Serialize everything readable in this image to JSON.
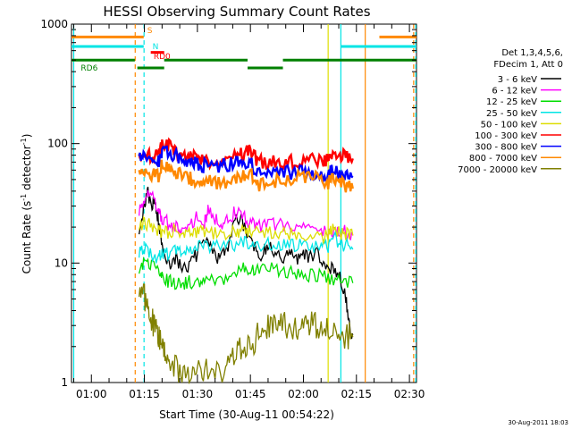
{
  "chart_data": {
    "type": "line",
    "title": "HESSI Observing Summary Count Rates",
    "xlabel": "Start Time (30-Aug-11 00:54:22)",
    "ylabel_main": "Count Rate (s",
    "ylabel_sup1": "-1",
    "ylabel_mid": " detector",
    "ylabel_sup2": "-1",
    "ylabel_end": ")",
    "y_scale": "log",
    "ylim": [
      1,
      1000
    ],
    "xlim_minutes": [
      54.37,
      152.0
    ],
    "x_ticks": [
      {
        "label": "01:00",
        "t": 60
      },
      {
        "label": "01:15",
        "t": 75
      },
      {
        "label": "01:30",
        "t": 90
      },
      {
        "label": "01:45",
        "t": 105
      },
      {
        "label": "02:00",
        "t": 120
      },
      {
        "label": "02:15",
        "t": 135
      },
      {
        "label": "02:30",
        "t": 150
      }
    ],
    "y_ticks": [
      {
        "label": "1",
        "v": 1
      },
      {
        "label": "10",
        "v": 10
      },
      {
        "label": "100",
        "v": 100
      },
      {
        "label": "1000",
        "v": 1000
      }
    ],
    "legend_title": [
      "Det 1,3,4,5,6,",
      "FDecim 1, Att 0"
    ],
    "legend_placement": "right",
    "series": [
      {
        "name": "3 - 6 keV",
        "color": "#000000",
        "points": [
          [
            73.5,
            20
          ],
          [
            75,
            30
          ],
          [
            76,
            38
          ],
          [
            77,
            30
          ],
          [
            78,
            34
          ],
          [
            79,
            22
          ],
          [
            80,
            14
          ],
          [
            82,
            10
          ],
          [
            84,
            11
          ],
          [
            86,
            9
          ],
          [
            88,
            10
          ],
          [
            90,
            12
          ],
          [
            92,
            16
          ],
          [
            94,
            13
          ],
          [
            96,
            11
          ],
          [
            98,
            12
          ],
          [
            100,
            20
          ],
          [
            102,
            25
          ],
          [
            104,
            18
          ],
          [
            106,
            14
          ],
          [
            108,
            12
          ],
          [
            110,
            14
          ],
          [
            112,
            12
          ],
          [
            114,
            11
          ],
          [
            116,
            12
          ],
          [
            118,
            11
          ],
          [
            120,
            12
          ],
          [
            122,
            11
          ],
          [
            124,
            12
          ],
          [
            126,
            10
          ],
          [
            128,
            9
          ],
          [
            130,
            8
          ],
          [
            132,
            5
          ],
          [
            133,
            3
          ],
          [
            134,
            2.5
          ]
        ]
      },
      {
        "name": "6 - 12 keV",
        "color": "#ff00ff",
        "points": [
          [
            73.5,
            28
          ],
          [
            75,
            35
          ],
          [
            77,
            38
          ],
          [
            79,
            28
          ],
          [
            80,
            24
          ],
          [
            82,
            21
          ],
          [
            84,
            20
          ],
          [
            86,
            19
          ],
          [
            88,
            21
          ],
          [
            90,
            25
          ],
          [
            92,
            22
          ],
          [
            93,
            28
          ],
          [
            95,
            24
          ],
          [
            97,
            22
          ],
          [
            99,
            24
          ],
          [
            101,
            27
          ],
          [
            103,
            24
          ],
          [
            105,
            22
          ],
          [
            107,
            20
          ],
          [
            110,
            21
          ],
          [
            113,
            21
          ],
          [
            116,
            20
          ],
          [
            119,
            20
          ],
          [
            122,
            20
          ],
          [
            125,
            19
          ],
          [
            128,
            18
          ],
          [
            130,
            19
          ],
          [
            132,
            18
          ],
          [
            134,
            17
          ]
        ]
      },
      {
        "name": "12 - 25 keV",
        "color": "#00dd00",
        "points": [
          [
            73.5,
            9
          ],
          [
            75,
            10
          ],
          [
            77,
            9.5
          ],
          [
            79,
            8.5
          ],
          [
            80,
            7.5
          ],
          [
            82,
            7
          ],
          [
            84,
            6.8
          ],
          [
            86,
            6.7
          ],
          [
            88,
            7
          ],
          [
            90,
            7
          ],
          [
            92,
            7
          ],
          [
            95,
            7.2
          ],
          [
            98,
            7.5
          ],
          [
            101,
            8
          ],
          [
            103,
            9.5
          ],
          [
            105,
            9
          ],
          [
            107,
            9
          ],
          [
            110,
            9
          ],
          [
            113,
            8.5
          ],
          [
            116,
            8.5
          ],
          [
            119,
            8
          ],
          [
            122,
            8
          ],
          [
            125,
            8
          ],
          [
            128,
            7.5
          ],
          [
            131,
            7
          ],
          [
            134,
            6.8
          ]
        ]
      },
      {
        "name": "25 - 50 keV",
        "color": "#00e5e5",
        "points": [
          [
            73.5,
            12
          ],
          [
            75,
            13
          ],
          [
            77,
            12
          ],
          [
            79,
            11
          ],
          [
            80,
            12
          ],
          [
            82,
            12
          ],
          [
            84,
            12.5
          ],
          [
            86,
            12
          ],
          [
            88,
            13
          ],
          [
            90,
            13.5
          ],
          [
            92,
            14
          ],
          [
            95,
            14
          ],
          [
            98,
            14
          ],
          [
            101,
            14
          ],
          [
            103,
            15
          ],
          [
            105,
            15
          ],
          [
            107,
            14
          ],
          [
            110,
            14.5
          ],
          [
            113,
            14.5
          ],
          [
            116,
            14
          ],
          [
            119,
            14
          ],
          [
            122,
            14
          ],
          [
            125,
            14
          ],
          [
            127,
            14
          ],
          [
            128,
            17
          ],
          [
            130,
            15
          ],
          [
            132,
            14
          ],
          [
            134,
            13
          ]
        ]
      },
      {
        "name": "50 - 100 keV",
        "color": "#dddd00",
        "points": [
          [
            73.5,
            20
          ],
          [
            75,
            22
          ],
          [
            77,
            20
          ],
          [
            79,
            19
          ],
          [
            80,
            18
          ],
          [
            82,
            18
          ],
          [
            84,
            18.5
          ],
          [
            86,
            18
          ],
          [
            88,
            18
          ],
          [
            90,
            18.5
          ],
          [
            92,
            18
          ],
          [
            95,
            18
          ],
          [
            98,
            18
          ],
          [
            101,
            18.5
          ],
          [
            103,
            19
          ],
          [
            105,
            18.5
          ],
          [
            107,
            18
          ],
          [
            110,
            18
          ],
          [
            113,
            17.5
          ],
          [
            116,
            17.5
          ],
          [
            119,
            17
          ],
          [
            122,
            17
          ],
          [
            125,
            17
          ],
          [
            127,
            16.5
          ],
          [
            128,
            19
          ],
          [
            130,
            18
          ],
          [
            132,
            17.5
          ],
          [
            134,
            17
          ]
        ]
      },
      {
        "name": "100 - 300 keV",
        "color": "#ff0000",
        "points": [
          [
            73.5,
            85
          ],
          [
            75,
            82
          ],
          [
            77,
            80
          ],
          [
            79,
            78
          ],
          [
            80,
            105
          ],
          [
            82,
            95
          ],
          [
            84,
            88
          ],
          [
            86,
            82
          ],
          [
            88,
            78
          ],
          [
            90,
            75
          ],
          [
            92,
            73
          ],
          [
            95,
            72
          ],
          [
            98,
            73
          ],
          [
            101,
            77
          ],
          [
            103,
            82
          ],
          [
            105,
            92
          ],
          [
            107,
            70
          ],
          [
            110,
            70
          ],
          [
            113,
            70
          ],
          [
            116,
            70
          ],
          [
            119,
            71
          ],
          [
            122,
            72
          ],
          [
            125,
            72
          ],
          [
            127,
            72
          ],
          [
            128,
            85
          ],
          [
            130,
            80
          ],
          [
            132,
            78
          ],
          [
            134,
            75
          ]
        ]
      },
      {
        "name": "300 - 800 keV",
        "color": "#0000ff",
        "points": [
          [
            73.5,
            80
          ],
          [
            75,
            75
          ],
          [
            77,
            72
          ],
          [
            79,
            70
          ],
          [
            80,
            90
          ],
          [
            82,
            85
          ],
          [
            84,
            80
          ],
          [
            86,
            74
          ],
          [
            88,
            70
          ],
          [
            90,
            68
          ],
          [
            92,
            66
          ],
          [
            95,
            65
          ],
          [
            98,
            66
          ],
          [
            101,
            70
          ],
          [
            103,
            72
          ],
          [
            105,
            70
          ],
          [
            107,
            56
          ],
          [
            110,
            57
          ],
          [
            113,
            58
          ],
          [
            116,
            57
          ],
          [
            119,
            58
          ],
          [
            122,
            57
          ],
          [
            125,
            55
          ],
          [
            127,
            52
          ],
          [
            128,
            60
          ],
          [
            130,
            56
          ],
          [
            132,
            54
          ],
          [
            134,
            52
          ]
        ]
      },
      {
        "name": "800 - 7000 keV",
        "color": "#ff8800",
        "points": [
          [
            73.5,
            60
          ],
          [
            75,
            56
          ],
          [
            77,
            55
          ],
          [
            79,
            54
          ],
          [
            80,
            68
          ],
          [
            82,
            64
          ],
          [
            84,
            58
          ],
          [
            86,
            54
          ],
          [
            88,
            51
          ],
          [
            90,
            49
          ],
          [
            92,
            48
          ],
          [
            95,
            47
          ],
          [
            98,
            48
          ],
          [
            101,
            50
          ],
          [
            103,
            54
          ],
          [
            105,
            58
          ],
          [
            107,
            45
          ],
          [
            110,
            47
          ],
          [
            113,
            49
          ],
          [
            116,
            51
          ],
          [
            119,
            53
          ],
          [
            122,
            52
          ],
          [
            125,
            50
          ],
          [
            127,
            47
          ],
          [
            128,
            52
          ],
          [
            130,
            47
          ],
          [
            132,
            44
          ],
          [
            134,
            42
          ]
        ]
      },
      {
        "name": "7000 - 20000 keV",
        "color": "#808000",
        "points": [
          [
            73.5,
            5
          ],
          [
            75,
            5.2
          ],
          [
            76,
            4
          ],
          [
            77,
            3.4
          ],
          [
            78,
            3
          ],
          [
            79,
            2.5
          ],
          [
            80,
            2.2
          ],
          [
            81,
            1.8
          ],
          [
            82,
            1.5
          ],
          [
            84,
            1.3
          ],
          [
            86,
            1.2
          ],
          [
            88,
            1.2
          ],
          [
            90,
            1.2
          ],
          [
            92,
            1.2
          ],
          [
            95,
            1.2
          ],
          [
            98,
            1.2
          ],
          [
            100,
            1.6
          ],
          [
            102,
            1.9
          ],
          [
            104,
            2
          ],
          [
            106,
            2.2
          ],
          [
            108,
            2.8
          ],
          [
            110,
            3
          ],
          [
            112,
            3
          ],
          [
            114,
            3
          ],
          [
            116,
            3
          ],
          [
            118,
            3
          ],
          [
            120,
            3
          ],
          [
            122,
            3
          ],
          [
            124,
            3.1
          ],
          [
            126,
            3
          ],
          [
            128,
            2.6
          ],
          [
            130,
            2.5
          ],
          [
            132,
            2.5
          ],
          [
            134,
            2.4
          ]
        ]
      }
    ],
    "flags": [
      {
        "name": "S",
        "color": "#ff8800",
        "v": 780,
        "segments": [
          [
            54.37,
            74.8
          ],
          [
            141.5,
            152.0
          ]
        ],
        "label_t": 75.8,
        "label_v": 840
      },
      {
        "name": "N",
        "color": "#00e5e5",
        "v": 650,
        "segments": [
          [
            54.37,
            74.8
          ],
          [
            130.6,
            152.0
          ]
        ],
        "label_t": 77.3,
        "label_v": 620
      },
      {
        "name": "RD0",
        "color": "#ff0000",
        "v": 580,
        "segments": [
          [
            76.8,
            80.6
          ]
        ],
        "label_t": 77.6,
        "label_v": 510
      },
      {
        "name": "RD6",
        "color": "#008000",
        "v": 500,
        "segments": [
          [
            54.37,
            72.3
          ],
          [
            80.6,
            104.2
          ],
          [
            114.2,
            152.0
          ]
        ],
        "label_t": 57.0,
        "label_v": 410
      },
      {
        "name": "",
        "color": "#008000",
        "v": 430,
        "segments": [
          [
            73.0,
            80.6
          ],
          [
            104.2,
            114.2
          ]
        ],
        "label_t": 0,
        "label_v": 0
      }
    ],
    "vlines": [
      {
        "t": 55.0,
        "color": "#00e5e5",
        "dash": false
      },
      {
        "t": 72.4,
        "color": "#ff8800",
        "dash": true
      },
      {
        "t": 74.9,
        "color": "#00e5e5",
        "dash": true
      },
      {
        "t": 127.0,
        "color": "#dddd00",
        "dash": false
      },
      {
        "t": 130.6,
        "color": "#00e5e5",
        "dash": false
      },
      {
        "t": 137.5,
        "color": "#ff8800",
        "dash": false
      },
      {
        "t": 151.2,
        "color": "#ff8800",
        "dash": true
      },
      {
        "t": 151.8,
        "color": "#00e5e5",
        "dash": true
      }
    ],
    "timestamp": "30-Aug-2011 18:03"
  }
}
